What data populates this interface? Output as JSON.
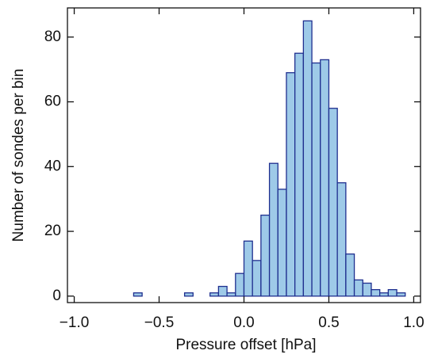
{
  "chart_data": {
    "type": "histogram",
    "xlabel": "Pressure offset [hPa]",
    "ylabel": "Number of sondes per bin",
    "bins": [
      -1.0,
      -0.95,
      -0.9,
      -0.85,
      -0.8,
      -0.75,
      -0.7,
      -0.65,
      -0.6,
      -0.55,
      -0.5,
      -0.45,
      -0.4,
      -0.35,
      -0.3,
      -0.25,
      -0.2,
      -0.15,
      -0.1,
      -0.05,
      0.0,
      0.05,
      0.1,
      0.15,
      0.2,
      0.25,
      0.3,
      0.35,
      0.4,
      0.45,
      0.5,
      0.55,
      0.6,
      0.65,
      0.7,
      0.75,
      0.8,
      0.85,
      0.9,
      0.95,
      1.0
    ],
    "values": [
      0,
      0,
      0,
      0,
      0,
      0,
      0,
      1,
      0,
      0,
      0,
      0,
      0,
      1,
      0,
      0,
      1,
      3,
      1,
      7,
      17,
      11,
      25,
      41,
      33,
      69,
      75,
      85,
      72,
      73,
      58,
      35,
      13,
      5,
      4,
      2,
      1,
      2,
      1,
      0
    ],
    "color": "#9ecae8",
    "edgecolor": "#1f2f8f",
    "xlim": [
      -1.04,
      1.04
    ],
    "ylim": [
      -2,
      89
    ],
    "xticks": [
      {
        "value": -1.0,
        "label": "−1.0"
      },
      {
        "value": -0.5,
        "label": "−0.5"
      },
      {
        "value": 0.0,
        "label": "0.0"
      },
      0.5,
      {
        "value": 1.0,
        "label": "1.0"
      }
    ],
    "yticks": [
      0,
      20,
      40,
      60,
      80
    ]
  }
}
